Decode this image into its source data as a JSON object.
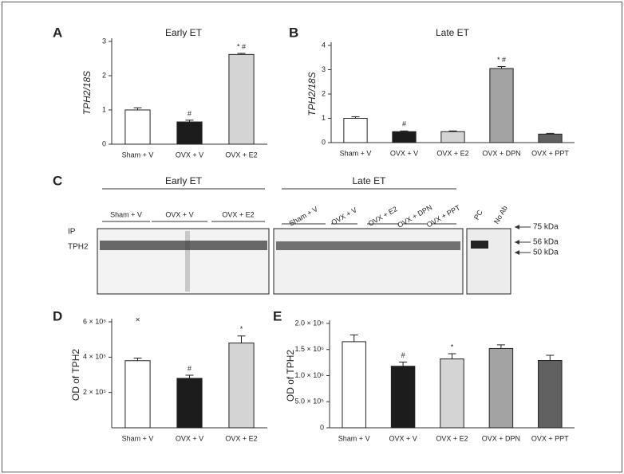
{
  "chart_data": [
    {
      "type": "bar",
      "panel": "A",
      "title": "Early ET",
      "ylabel": "TPH2/18S",
      "ylabel_italic": true,
      "categories": [
        "Sham + V",
        "OVX + V",
        "OVX + E2"
      ],
      "values": [
        1.0,
        0.65,
        2.62
      ],
      "errors": [
        0.06,
        0.05,
        0.03
      ],
      "colors": [
        "#ffffff",
        "#1c1c1c",
        "#d4d4d4"
      ],
      "annotations": [
        null,
        "#",
        "* #"
      ],
      "ylim": [
        0,
        3
      ],
      "yticks": [
        0,
        1,
        2,
        3
      ]
    },
    {
      "type": "bar",
      "panel": "B",
      "title": "Late ET",
      "ylabel": "TPH2/18S",
      "ylabel_italic": true,
      "categories": [
        "Sham + V",
        "OVX + V",
        "OVX + E2",
        "OVX + DPN",
        "OVX + PPT"
      ],
      "values": [
        1.0,
        0.45,
        0.45,
        3.05,
        0.35
      ],
      "errors": [
        0.06,
        0.03,
        0.03,
        0.08,
        0.03
      ],
      "colors": [
        "#ffffff",
        "#1c1c1c",
        "#d4d4d4",
        "#a3a3a3",
        "#606060"
      ],
      "annotations": [
        null,
        "#",
        null,
        "* #",
        null
      ],
      "ylim": [
        0,
        4
      ],
      "yticks": [
        0,
        1,
        2,
        3,
        4
      ]
    },
    {
      "type": "bar",
      "panel": "D",
      "ylabel": "OD of TPH2",
      "ylabel_italic": false,
      "categories": [
        "Sham + V",
        "OVX + V",
        "OVX + E2"
      ],
      "values": [
        380000,
        280000,
        480000
      ],
      "errors": [
        15000,
        18000,
        40000
      ],
      "outliers": [
        610000,
        null,
        null
      ],
      "outlier_symbol": "×",
      "colors": [
        "#ffffff",
        "#1c1c1c",
        "#d4d4d4"
      ],
      "annotations": [
        null,
        "#",
        "*"
      ],
      "ylim": [
        0,
        600000
      ],
      "yticks": [
        {
          "value": 200000,
          "label": "2 × 10⁵"
        },
        {
          "value": 400000,
          "label": "4 × 10⁵"
        },
        {
          "value": 600000,
          "label": "6 × 10⁵"
        }
      ]
    },
    {
      "type": "bar",
      "panel": "E",
      "ylabel": "OD of TPH2",
      "ylabel_italic": false,
      "categories": [
        "Sham + V",
        "OVX + V",
        "OVX + E2",
        "OVX + DPN",
        "OVX + PPT"
      ],
      "values": [
        1650000,
        1180000,
        1320000,
        1520000,
        1290000
      ],
      "errors": [
        130000,
        80000,
        100000,
        70000,
        100000
      ],
      "colors": [
        "#ffffff",
        "#1c1c1c",
        "#d4d4d4",
        "#a3a3a3",
        "#606060"
      ],
      "annotations": [
        null,
        "#",
        "*",
        null,
        null
      ],
      "ylim": [
        0,
        2000000
      ],
      "yticks": [
        0,
        {
          "value": 500000,
          "label": "5.0 × 10⁵"
        },
        {
          "value": 1000000,
          "label": "1.0 × 10⁶"
        },
        {
          "value": 1500000,
          "label": "1.5 × 10⁶"
        },
        {
          "value": 2000000,
          "label": "2.0 × 10⁶"
        }
      ]
    }
  ],
  "blot": {
    "panel": "C",
    "groups": [
      {
        "title": "Early ET",
        "lanes": [
          "Sham + V",
          "OVX + V",
          "OVX + E2"
        ]
      },
      {
        "title": "Late ET",
        "lanes": [
          "Sham + V",
          "OVX + V",
          "OVX + E2",
          "OVX + DPN",
          "OVX + PPT"
        ]
      }
    ],
    "controls": [
      "PC",
      "No Ab"
    ],
    "row_labels": [
      "IP",
      "TPH2"
    ],
    "markers": [
      "75 kDa",
      "56 kDa",
      "50 kDa"
    ]
  }
}
